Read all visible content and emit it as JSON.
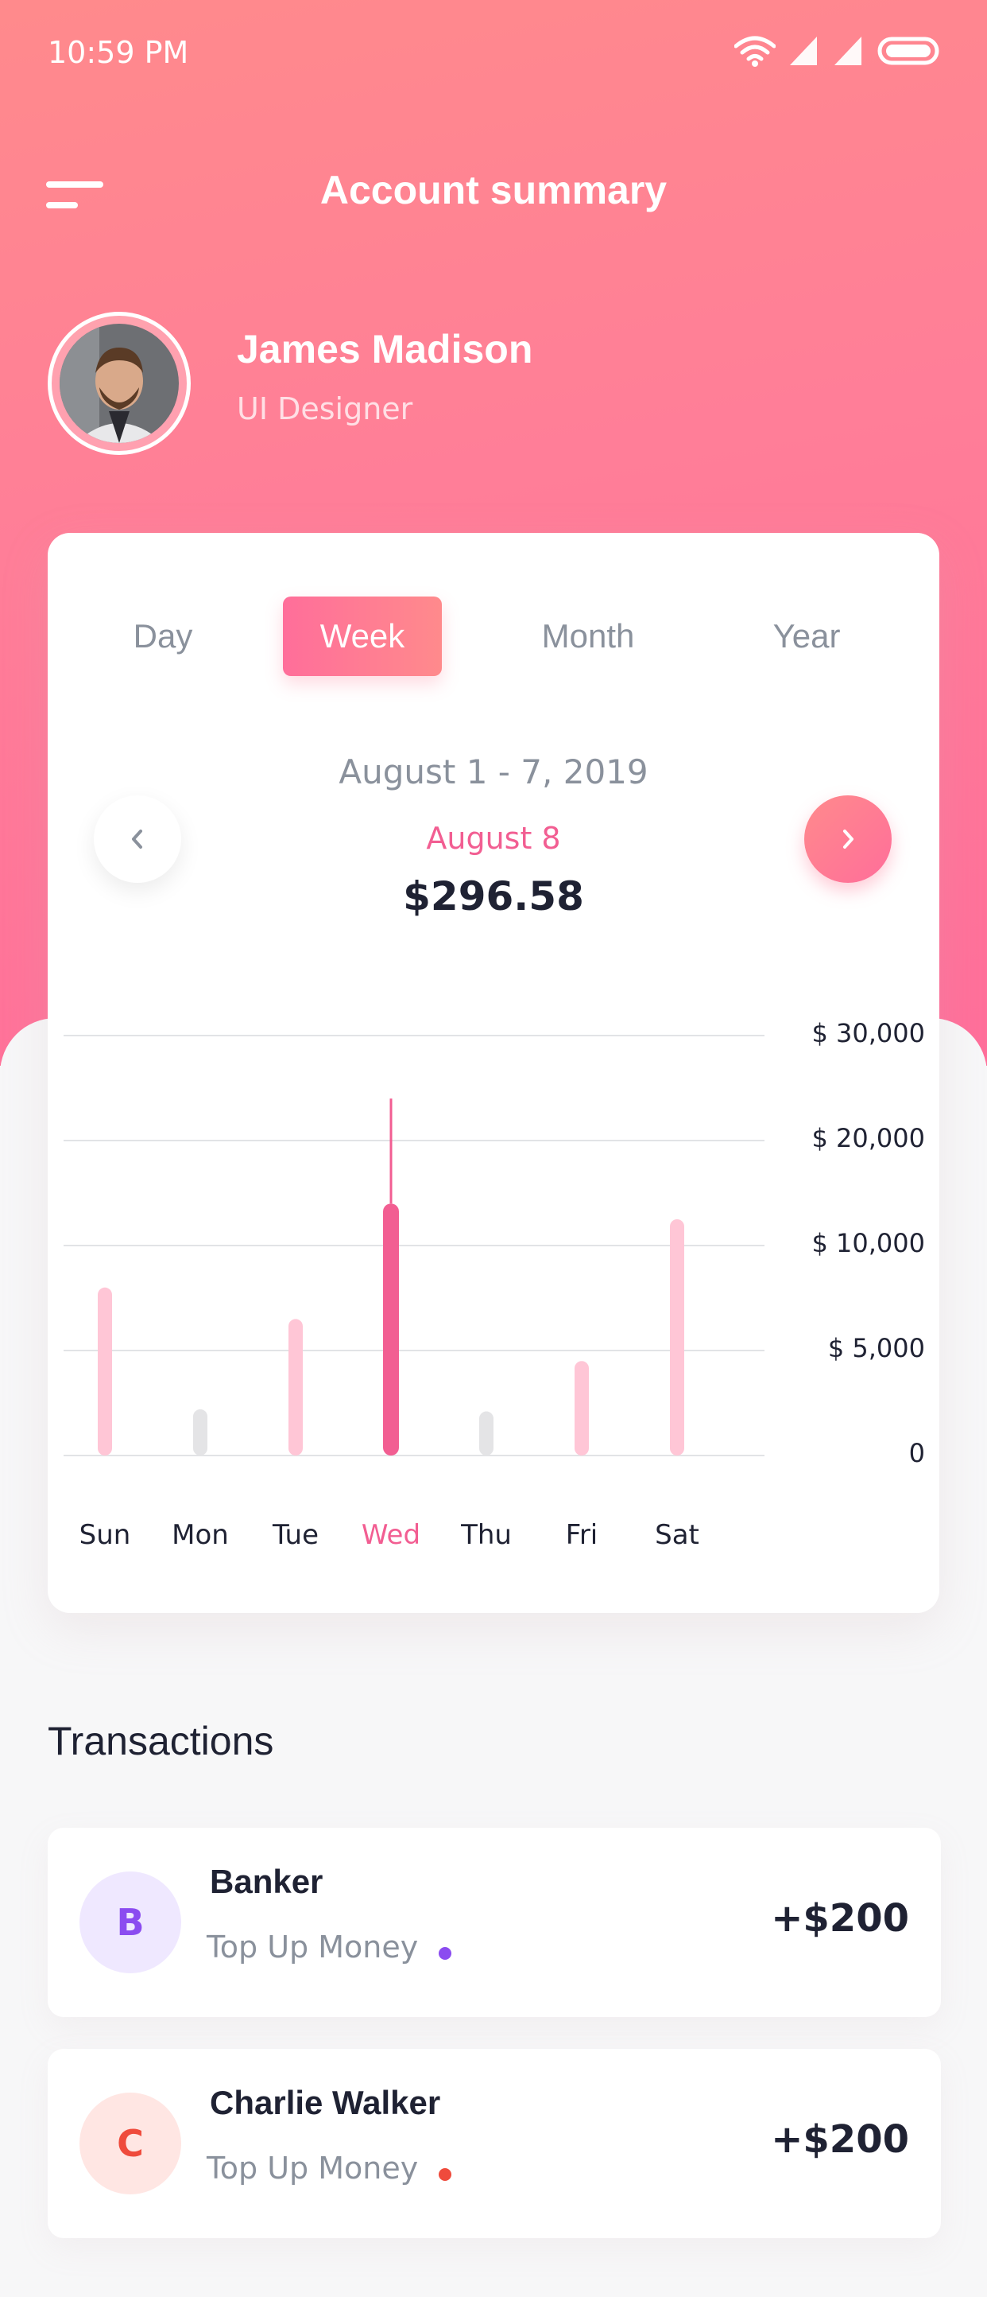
{
  "status": {
    "time": "10:59 PM"
  },
  "header": {
    "title": "Account summary"
  },
  "profile": {
    "name": "James Madison",
    "role": "UI Designer"
  },
  "tabs": [
    {
      "label": "Day",
      "active": false
    },
    {
      "label": "Week",
      "active": true
    },
    {
      "label": "Month",
      "active": false
    },
    {
      "label": "Year",
      "active": false
    }
  ],
  "summary": {
    "range": "August 1 - 7, 2019",
    "date": "August 8",
    "amount": "$296.58"
  },
  "chart_data": {
    "type": "bar",
    "categories": [
      "Sun",
      "Mon",
      "Tue",
      "Wed",
      "Thu",
      "Fri",
      "Sat"
    ],
    "values": [
      8000,
      2200,
      6500,
      14000,
      2100,
      4500,
      12500
    ],
    "highlight": "Wed",
    "y_ticks": [
      "$ 30,000",
      "$ 20,000",
      "$ 10,000",
      "$ 5,000",
      "0"
    ],
    "colors": {
      "bar": "#ffc6d6",
      "bar_low": "#e4e4e6",
      "highlight": "#f25e92"
    }
  },
  "transactions": {
    "title": "Transactions",
    "items": [
      {
        "initial": "B",
        "name": "Banker",
        "description": "Top Up Money",
        "amount": "+$200",
        "color": "#8b4cf0",
        "bg": "#efe8ff"
      },
      {
        "initial": "C",
        "name": "Charlie Walker",
        "description": "Top Up Money",
        "amount": "+$200",
        "color": "#ef4b3c",
        "bg": "#ffe6e3"
      }
    ]
  }
}
